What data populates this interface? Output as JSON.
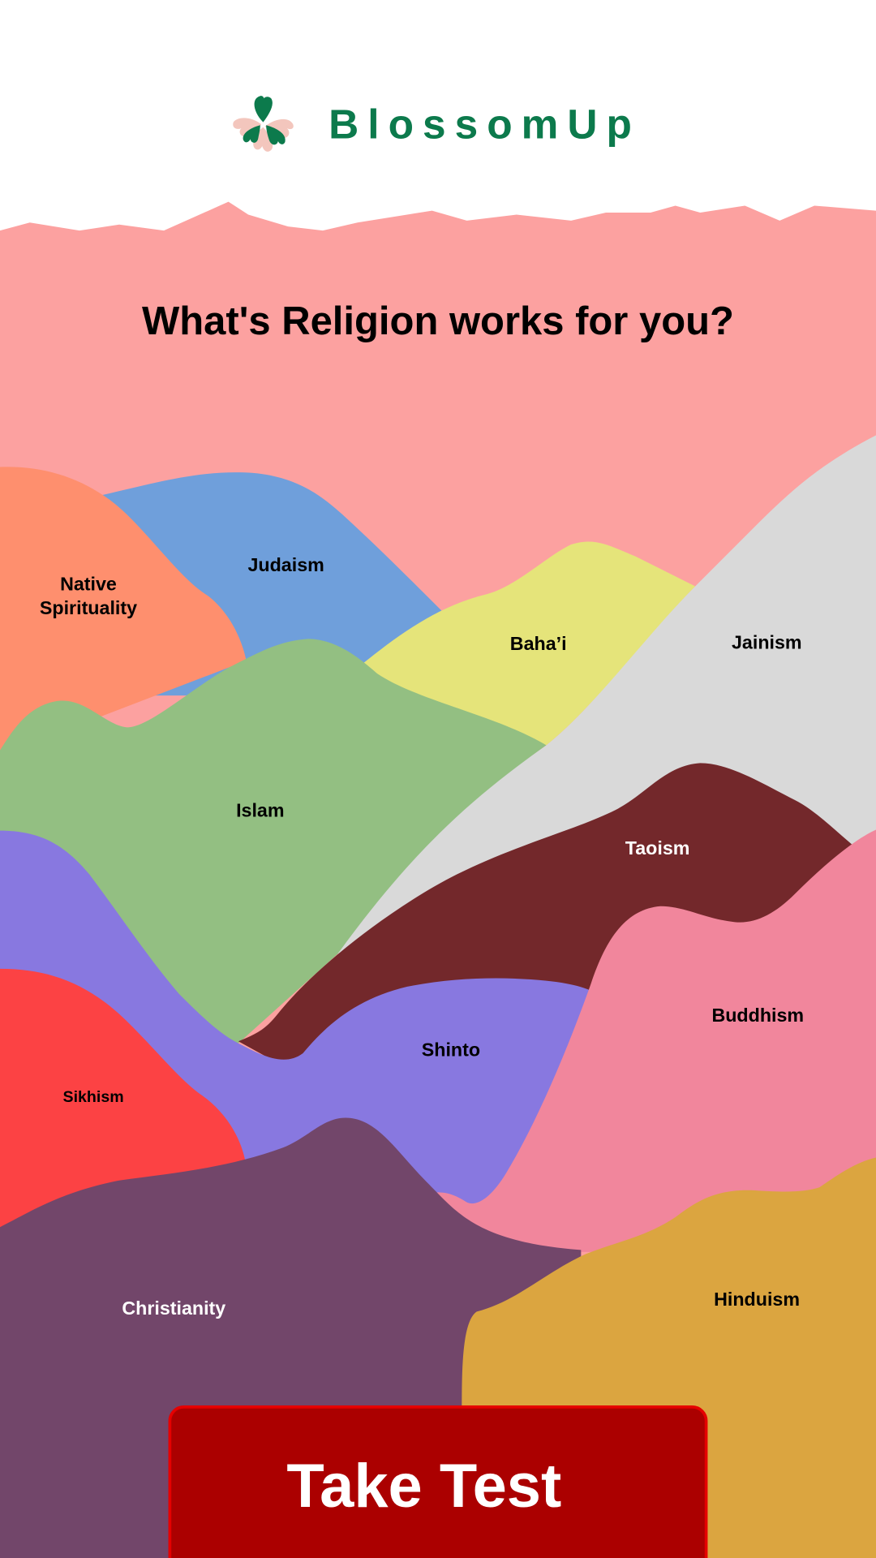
{
  "header": {
    "brand": "BlossomUp"
  },
  "title": "What's Religion works for you?",
  "regions": [
    {
      "label": [
        "Native",
        "Spirituality"
      ]
    },
    {
      "label": [
        "Judaism"
      ]
    },
    {
      "label": [
        "Baha’i"
      ]
    },
    {
      "label": [
        "Jainism"
      ]
    },
    {
      "label": [
        "Islam"
      ]
    },
    {
      "label": [
        "Taoism"
      ]
    },
    {
      "label": [
        "Buddhism"
      ]
    },
    {
      "label": [
        "Shinto"
      ]
    },
    {
      "label": [
        "Sikhism"
      ]
    },
    {
      "label": [
        "Christianity"
      ]
    },
    {
      "label": [
        "Hinduism"
      ]
    }
  ],
  "button": {
    "label": "Take Test"
  }
}
